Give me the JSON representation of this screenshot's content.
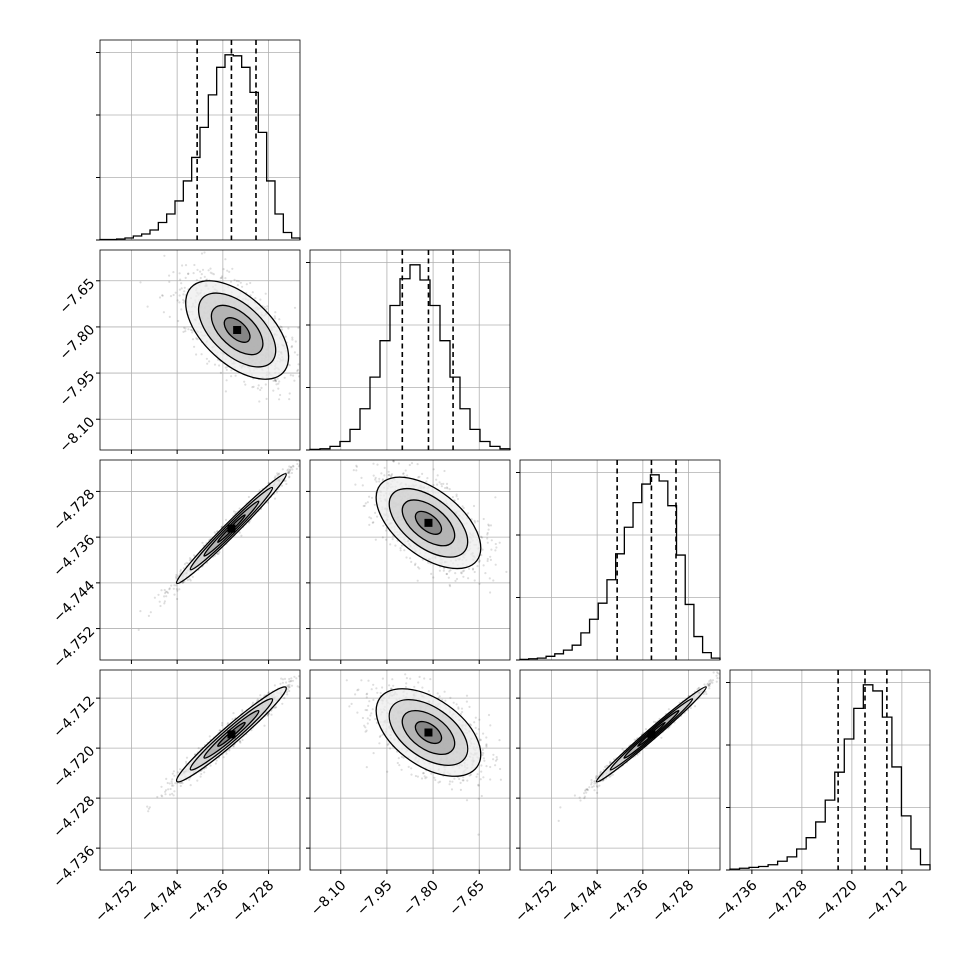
{
  "chart_data": {
    "type": "corner",
    "parameters": [
      {
        "index": 0,
        "range": [
          -4.7575,
          -4.7225
        ],
        "ticks": [
          -4.752,
          -4.744,
          -4.736,
          -4.728
        ],
        "tick_labels": [
          "−4.752",
          "−4.744",
          "−4.736",
          "−4.728"
        ]
      },
      {
        "index": 1,
        "range": [
          -8.2,
          -7.55
        ],
        "ticks": [
          -8.1,
          -7.95,
          -7.8,
          -7.65
        ],
        "tick_labels": [
          "−8.10",
          "−7.95",
          "−7.80",
          "−7.65"
        ]
      },
      {
        "index": 2,
        "range": [
          -4.7575,
          -4.7225
        ],
        "ticks": [
          -4.752,
          -4.744,
          -4.736,
          -4.728
        ],
        "tick_labels": [
          "−4.752",
          "−4.744",
          "−4.736",
          "−4.728"
        ]
      },
      {
        "index": 3,
        "range": [
          -4.7395,
          -4.7075
        ],
        "ticks": [
          -4.736,
          -4.728,
          -4.72,
          -4.712
        ],
        "tick_labels": [
          "−4.736",
          "−4.728",
          "−4.720",
          "−4.712"
        ]
      }
    ],
    "histograms": [
      {
        "param": 0,
        "quantiles": [
          -4.7405,
          -4.7345,
          -4.7302
        ],
        "counts": [
          1,
          1,
          2,
          4,
          8,
          12,
          20,
          35,
          52,
          78,
          118,
          165,
          225,
          290,
          345,
          370,
          368,
          345,
          295,
          215,
          118,
          52,
          15,
          4
        ]
      },
      {
        "param": 1,
        "quantiles": [
          -7.9,
          -7.815,
          -7.735
        ],
        "counts": [
          1,
          2,
          6,
          14,
          34,
          68,
          120,
          180,
          238,
          282,
          305,
          280,
          238,
          180,
          120,
          68,
          34,
          14,
          6,
          2
        ]
      },
      {
        "param": 2,
        "quantiles": [
          -4.7405,
          -4.7345,
          -4.7302
        ],
        "counts": [
          1,
          2,
          3,
          6,
          10,
          16,
          24,
          44,
          66,
          92,
          130,
          172,
          215,
          255,
          285,
          300,
          290,
          250,
          170,
          90,
          38,
          12,
          3
        ]
      },
      {
        "param": 3,
        "quantiles": [
          -4.7222,
          -4.7179,
          -4.7144
        ],
        "counts": [
          1,
          2,
          3,
          4,
          6,
          10,
          15,
          24,
          37,
          55,
          80,
          112,
          150,
          185,
          212,
          205,
          175,
          118,
          62,
          24,
          6
        ]
      }
    ],
    "pairs": [
      {
        "x": 0,
        "y": 1,
        "center": [
          -4.7335,
          -7.81
        ],
        "sd": [
          0.0045,
          0.08
        ],
        "corr": -0.55
      },
      {
        "x": 0,
        "y": 2,
        "center": [
          -4.7345,
          -4.7345
        ],
        "sd": [
          0.0048,
          0.0048
        ],
        "corr": 0.985
      },
      {
        "x": 1,
        "y": 2,
        "center": [
          -7.815,
          -4.7335
        ],
        "sd": [
          0.085,
          0.004
        ],
        "corr": -0.55
      },
      {
        "x": 0,
        "y": 3,
        "center": [
          -4.7345,
          -4.7178
        ],
        "sd": [
          0.0048,
          0.0038
        ],
        "corr": 0.97
      },
      {
        "x": 1,
        "y": 3,
        "center": [
          -7.815,
          -4.7175
        ],
        "sd": [
          0.085,
          0.0035
        ],
        "corr": -0.5
      },
      {
        "x": 2,
        "y": 3,
        "center": [
          -4.7345,
          -4.7178
        ],
        "sd": [
          0.0048,
          0.0038
        ],
        "corr": 0.99
      }
    ]
  }
}
